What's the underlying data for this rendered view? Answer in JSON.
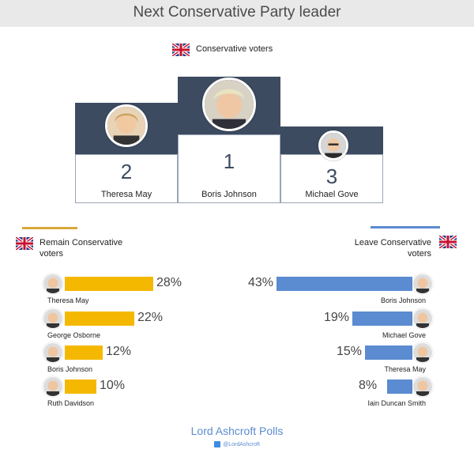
{
  "title": "Next Conservative Party leader",
  "podium": {
    "group_label": "Conservative voters",
    "places": [
      {
        "rank": "2",
        "name": "Theresa May"
      },
      {
        "rank": "1",
        "name": "Boris Johnson"
      },
      {
        "rank": "3",
        "name": "Michael Gove"
      }
    ]
  },
  "colors": {
    "podium": "#3d4b61",
    "remain_bar": "#f5b800",
    "leave_bar": "#5b8bd0"
  },
  "icons": {
    "flag": "union-jack-icon",
    "avatar": "person-photo-icon",
    "twitter": "twitter-icon"
  },
  "chart_data": [
    {
      "type": "bar",
      "title": "Remain Conservative voters",
      "orientation": "horizontal",
      "direction": "left-to-right",
      "bar_color": "#f5b800",
      "categories": [
        "Theresa May",
        "George Osborne",
        "Boris Johnson",
        "Ruth Davidson"
      ],
      "values": [
        28,
        22,
        12,
        10
      ],
      "labels": [
        "28%",
        "22%",
        "12%",
        "10%"
      ]
    },
    {
      "type": "bar",
      "title": "Leave Conservative voters",
      "orientation": "horizontal",
      "direction": "right-to-left",
      "bar_color": "#5b8bd0",
      "categories": [
        "Boris Johnson",
        "Michael Gove",
        "Theresa May",
        "Iain Duncan Smith"
      ],
      "values": [
        43,
        19,
        15,
        8
      ],
      "labels": [
        "43%",
        "19%",
        "15%",
        "8%"
      ]
    }
  ],
  "footer": {
    "brand": "Lord Ashcroft Polls",
    "handle": "@LordAshcroft"
  }
}
